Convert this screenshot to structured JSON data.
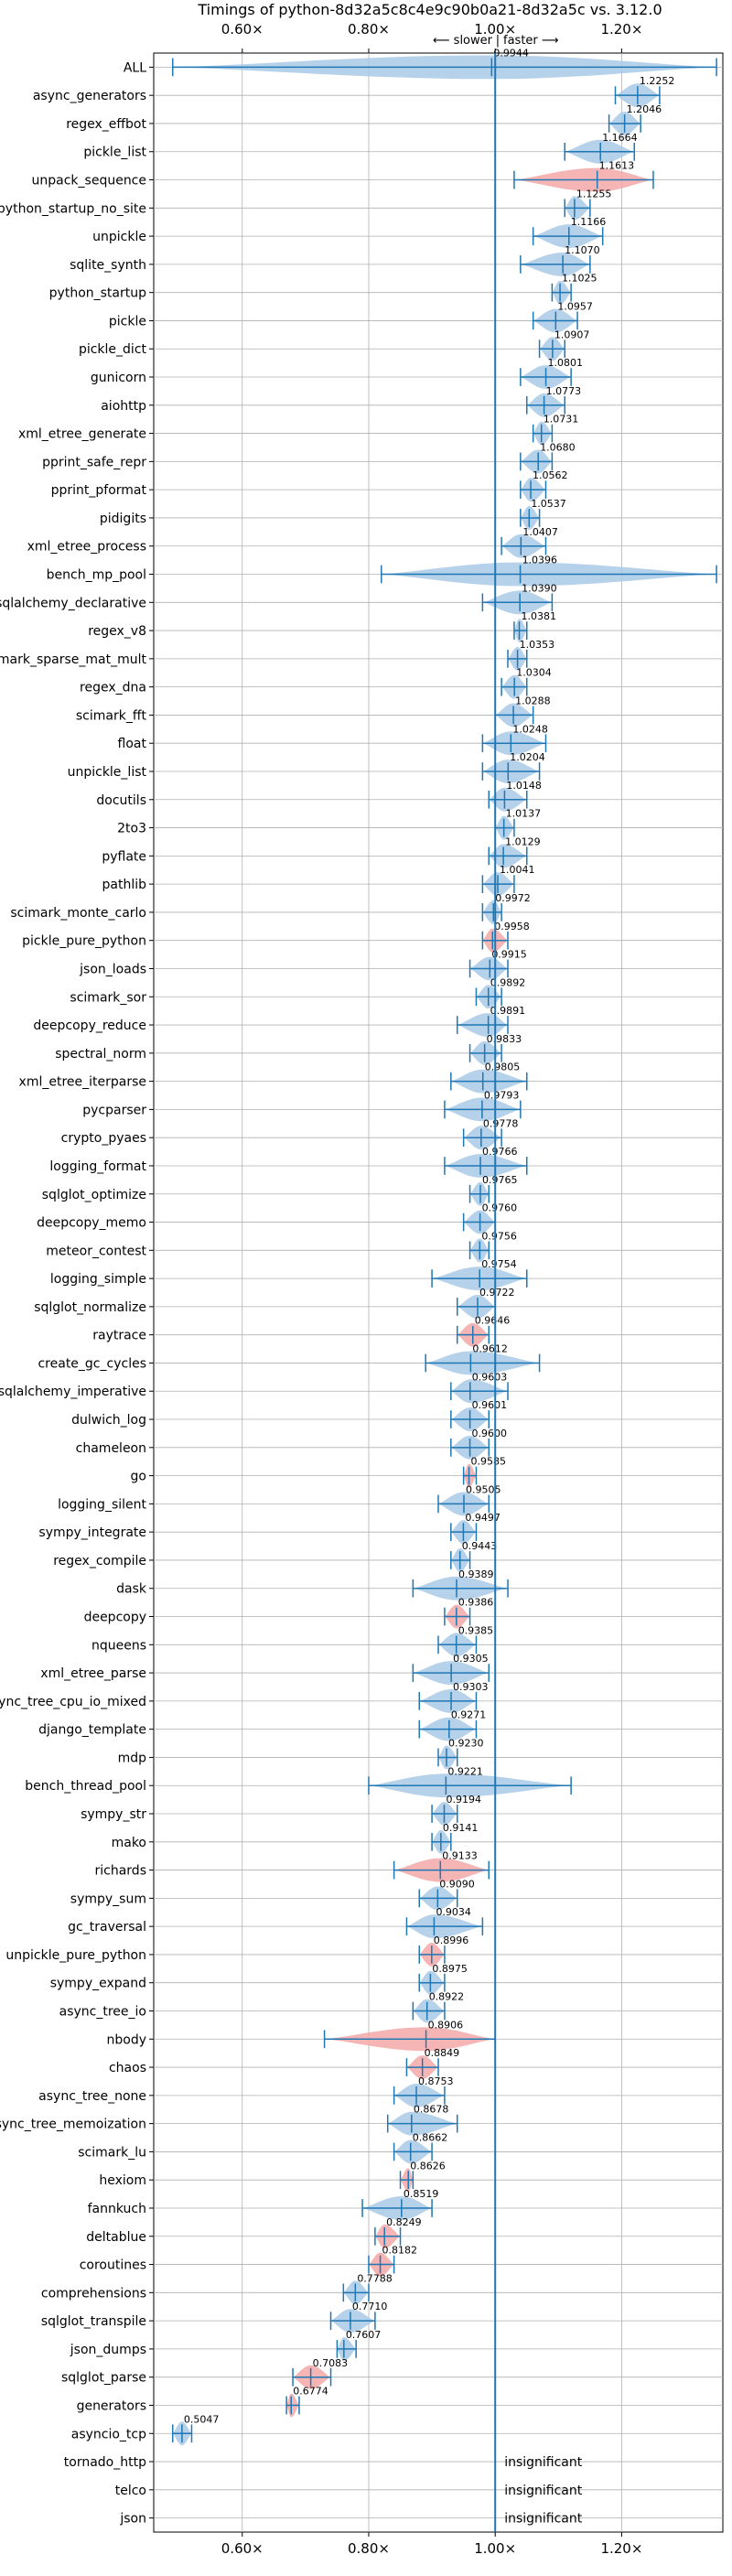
{
  "chart_data": {
    "type": "violin",
    "title": "Timings of python-8d32a5c8c4e9c90b0a21-8d32a5c vs. 3.12.0",
    "direction_note": {
      "slower": "⟵ slower",
      "faster": "faster ⟶",
      "sep": "|"
    },
    "xlim": [
      0.46,
      1.36
    ],
    "xticks": [
      0.6,
      0.8,
      1.0,
      1.2
    ],
    "xtick_labels": [
      "0.60×",
      "0.80×",
      "1.00×",
      "1.20×"
    ],
    "reference_line": 1.0,
    "grid": true,
    "colors": {
      "normal": "#a9c9e6",
      "slower": "#f4a8a8",
      "line": "#1f77b4"
    },
    "benchmarks": [
      {
        "name": "ALL",
        "value": 0.9944,
        "lo": 0.49,
        "hi": 1.35,
        "slower": false
      },
      {
        "name": "async_generators",
        "value": 1.2252,
        "lo": 1.19,
        "hi": 1.26,
        "slower": false
      },
      {
        "name": "regex_effbot",
        "value": 1.2046,
        "lo": 1.18,
        "hi": 1.23,
        "slower": false
      },
      {
        "name": "pickle_list",
        "value": 1.1664,
        "lo": 1.11,
        "hi": 1.22,
        "slower": false
      },
      {
        "name": "unpack_sequence",
        "value": 1.1613,
        "lo": 1.03,
        "hi": 1.25,
        "slower": true
      },
      {
        "name": "python_startup_no_site",
        "value": 1.1255,
        "lo": 1.11,
        "hi": 1.15,
        "slower": false
      },
      {
        "name": "unpickle",
        "value": 1.1166,
        "lo": 1.06,
        "hi": 1.17,
        "slower": false
      },
      {
        "name": "sqlite_synth",
        "value": 1.107,
        "lo": 1.04,
        "hi": 1.15,
        "slower": false
      },
      {
        "name": "python_startup",
        "value": 1.1025,
        "lo": 1.09,
        "hi": 1.12,
        "slower": false
      },
      {
        "name": "pickle",
        "value": 1.0957,
        "lo": 1.06,
        "hi": 1.13,
        "slower": false
      },
      {
        "name": "pickle_dict",
        "value": 1.0907,
        "lo": 1.07,
        "hi": 1.11,
        "slower": false
      },
      {
        "name": "gunicorn",
        "value": 1.0801,
        "lo": 1.04,
        "hi": 1.12,
        "slower": false
      },
      {
        "name": "aiohttp",
        "value": 1.0773,
        "lo": 1.05,
        "hi": 1.11,
        "slower": false
      },
      {
        "name": "xml_etree_generate",
        "value": 1.0731,
        "lo": 1.06,
        "hi": 1.09,
        "slower": false
      },
      {
        "name": "pprint_safe_repr",
        "value": 1.068,
        "lo": 1.04,
        "hi": 1.09,
        "slower": false
      },
      {
        "name": "pprint_pformat",
        "value": 1.0562,
        "lo": 1.04,
        "hi": 1.08,
        "slower": false
      },
      {
        "name": "pidigits",
        "value": 1.0537,
        "lo": 1.04,
        "hi": 1.07,
        "slower": false
      },
      {
        "name": "xml_etree_process",
        "value": 1.0407,
        "lo": 1.01,
        "hi": 1.08,
        "slower": false
      },
      {
        "name": "bench_mp_pool",
        "value": 1.0396,
        "lo": 0.82,
        "hi": 1.35,
        "slower": false
      },
      {
        "name": "sqlalchemy_declarative",
        "value": 1.039,
        "lo": 0.98,
        "hi": 1.09,
        "slower": false
      },
      {
        "name": "regex_v8",
        "value": 1.0381,
        "lo": 1.03,
        "hi": 1.05,
        "slower": false
      },
      {
        "name": "scimark_sparse_mat_mult",
        "value": 1.0353,
        "lo": 1.02,
        "hi": 1.05,
        "slower": false
      },
      {
        "name": "regex_dna",
        "value": 1.0304,
        "lo": 1.01,
        "hi": 1.05,
        "slower": false
      },
      {
        "name": "scimark_fft",
        "value": 1.0288,
        "lo": 1.0,
        "hi": 1.06,
        "slower": false
      },
      {
        "name": "float",
        "value": 1.0248,
        "lo": 0.98,
        "hi": 1.08,
        "slower": false
      },
      {
        "name": "unpickle_list",
        "value": 1.0204,
        "lo": 0.98,
        "hi": 1.07,
        "slower": false
      },
      {
        "name": "docutils",
        "value": 1.0148,
        "lo": 0.99,
        "hi": 1.05,
        "slower": false
      },
      {
        "name": "2to3",
        "value": 1.0137,
        "lo": 1.0,
        "hi": 1.03,
        "slower": false
      },
      {
        "name": "pyflate",
        "value": 1.0129,
        "lo": 0.99,
        "hi": 1.05,
        "slower": false
      },
      {
        "name": "pathlib",
        "value": 1.0041,
        "lo": 0.98,
        "hi": 1.03,
        "slower": false
      },
      {
        "name": "scimark_monte_carlo",
        "value": 0.9972,
        "lo": 0.98,
        "hi": 1.01,
        "slower": false
      },
      {
        "name": "pickle_pure_python",
        "value": 0.9958,
        "lo": 0.98,
        "hi": 1.02,
        "slower": true
      },
      {
        "name": "json_loads",
        "value": 0.9915,
        "lo": 0.96,
        "hi": 1.02,
        "slower": false
      },
      {
        "name": "scimark_sor",
        "value": 0.9892,
        "lo": 0.97,
        "hi": 1.01,
        "slower": false
      },
      {
        "name": "deepcopy_reduce",
        "value": 0.9891,
        "lo": 0.94,
        "hi": 1.02,
        "slower": false
      },
      {
        "name": "spectral_norm",
        "value": 0.9833,
        "lo": 0.96,
        "hi": 1.01,
        "slower": false
      },
      {
        "name": "xml_etree_iterparse",
        "value": 0.9805,
        "lo": 0.93,
        "hi": 1.05,
        "slower": false
      },
      {
        "name": "pycparser",
        "value": 0.9793,
        "lo": 0.92,
        "hi": 1.04,
        "slower": false
      },
      {
        "name": "crypto_pyaes",
        "value": 0.9778,
        "lo": 0.95,
        "hi": 1.01,
        "slower": false
      },
      {
        "name": "logging_format",
        "value": 0.9766,
        "lo": 0.92,
        "hi": 1.05,
        "slower": false
      },
      {
        "name": "sqlglot_optimize",
        "value": 0.9765,
        "lo": 0.96,
        "hi": 0.99,
        "slower": false
      },
      {
        "name": "deepcopy_memo",
        "value": 0.976,
        "lo": 0.95,
        "hi": 1.0,
        "slower": false
      },
      {
        "name": "meteor_contest",
        "value": 0.9756,
        "lo": 0.96,
        "hi": 0.99,
        "slower": false
      },
      {
        "name": "logging_simple",
        "value": 0.9754,
        "lo": 0.9,
        "hi": 1.05,
        "slower": false
      },
      {
        "name": "sqlglot_normalize",
        "value": 0.9722,
        "lo": 0.94,
        "hi": 1.0,
        "slower": false
      },
      {
        "name": "raytrace",
        "value": 0.9646,
        "lo": 0.94,
        "hi": 0.99,
        "slower": true
      },
      {
        "name": "create_gc_cycles",
        "value": 0.9612,
        "lo": 0.89,
        "hi": 1.07,
        "slower": false
      },
      {
        "name": "sqlalchemy_imperative",
        "value": 0.9603,
        "lo": 0.93,
        "hi": 1.02,
        "slower": false
      },
      {
        "name": "dulwich_log",
        "value": 0.9601,
        "lo": 0.93,
        "hi": 0.99,
        "slower": false
      },
      {
        "name": "chameleon",
        "value": 0.96,
        "lo": 0.93,
        "hi": 0.99,
        "slower": false
      },
      {
        "name": "go",
        "value": 0.9585,
        "lo": 0.95,
        "hi": 0.97,
        "slower": true
      },
      {
        "name": "logging_silent",
        "value": 0.9505,
        "lo": 0.91,
        "hi": 0.99,
        "slower": false
      },
      {
        "name": "sympy_integrate",
        "value": 0.9497,
        "lo": 0.93,
        "hi": 0.97,
        "slower": false
      },
      {
        "name": "regex_compile",
        "value": 0.9443,
        "lo": 0.93,
        "hi": 0.96,
        "slower": false
      },
      {
        "name": "dask",
        "value": 0.9389,
        "lo": 0.87,
        "hi": 1.02,
        "slower": false
      },
      {
        "name": "deepcopy",
        "value": 0.9386,
        "lo": 0.92,
        "hi": 0.96,
        "slower": true
      },
      {
        "name": "nqueens",
        "value": 0.9385,
        "lo": 0.91,
        "hi": 0.97,
        "slower": false
      },
      {
        "name": "xml_etree_parse",
        "value": 0.9305,
        "lo": 0.87,
        "hi": 0.99,
        "slower": false
      },
      {
        "name": "async_tree_cpu_io_mixed",
        "value": 0.9303,
        "lo": 0.88,
        "hi": 0.97,
        "slower": false
      },
      {
        "name": "django_template",
        "value": 0.9271,
        "lo": 0.88,
        "hi": 0.97,
        "slower": false
      },
      {
        "name": "mdp",
        "value": 0.923,
        "lo": 0.91,
        "hi": 0.94,
        "slower": false
      },
      {
        "name": "bench_thread_pool",
        "value": 0.9221,
        "lo": 0.8,
        "hi": 1.12,
        "slower": false
      },
      {
        "name": "sympy_str",
        "value": 0.9194,
        "lo": 0.9,
        "hi": 0.94,
        "slower": false
      },
      {
        "name": "mako",
        "value": 0.9141,
        "lo": 0.9,
        "hi": 0.93,
        "slower": false
      },
      {
        "name": "richards",
        "value": 0.9133,
        "lo": 0.84,
        "hi": 0.99,
        "slower": true
      },
      {
        "name": "sympy_sum",
        "value": 0.909,
        "lo": 0.88,
        "hi": 0.94,
        "slower": false
      },
      {
        "name": "gc_traversal",
        "value": 0.9034,
        "lo": 0.86,
        "hi": 0.98,
        "slower": false
      },
      {
        "name": "unpickle_pure_python",
        "value": 0.8996,
        "lo": 0.88,
        "hi": 0.92,
        "slower": true
      },
      {
        "name": "sympy_expand",
        "value": 0.8975,
        "lo": 0.88,
        "hi": 0.92,
        "slower": false
      },
      {
        "name": "async_tree_io",
        "value": 0.8922,
        "lo": 0.87,
        "hi": 0.92,
        "slower": false
      },
      {
        "name": "nbody",
        "value": 0.8906,
        "lo": 0.73,
        "hi": 1.0,
        "slower": true
      },
      {
        "name": "chaos",
        "value": 0.8849,
        "lo": 0.86,
        "hi": 0.91,
        "slower": true
      },
      {
        "name": "async_tree_none",
        "value": 0.8753,
        "lo": 0.84,
        "hi": 0.92,
        "slower": false
      },
      {
        "name": "async_tree_memoization",
        "value": 0.8678,
        "lo": 0.83,
        "hi": 0.94,
        "slower": false
      },
      {
        "name": "scimark_lu",
        "value": 0.8662,
        "lo": 0.84,
        "hi": 0.9,
        "slower": false
      },
      {
        "name": "hexiom",
        "value": 0.8626,
        "lo": 0.85,
        "hi": 0.87,
        "slower": true
      },
      {
        "name": "fannkuch",
        "value": 0.8519,
        "lo": 0.79,
        "hi": 0.9,
        "slower": false
      },
      {
        "name": "deltablue",
        "value": 0.8249,
        "lo": 0.81,
        "hi": 0.85,
        "slower": true
      },
      {
        "name": "coroutines",
        "value": 0.8182,
        "lo": 0.8,
        "hi": 0.84,
        "slower": true
      },
      {
        "name": "comprehensions",
        "value": 0.7788,
        "lo": 0.76,
        "hi": 0.8,
        "slower": false
      },
      {
        "name": "sqlglot_transpile",
        "value": 0.771,
        "lo": 0.74,
        "hi": 0.81,
        "slower": false
      },
      {
        "name": "json_dumps",
        "value": 0.7607,
        "lo": 0.75,
        "hi": 0.78,
        "slower": false
      },
      {
        "name": "sqlglot_parse",
        "value": 0.7083,
        "lo": 0.68,
        "hi": 0.74,
        "slower": true
      },
      {
        "name": "generators",
        "value": 0.6774,
        "lo": 0.67,
        "hi": 0.69,
        "slower": true
      },
      {
        "name": "asyncio_tcp",
        "value": 0.5047,
        "lo": 0.49,
        "hi": 0.52,
        "slower": false
      },
      {
        "name": "tornado_http",
        "value": null,
        "insignificant": true
      },
      {
        "name": "telco",
        "value": null,
        "insignificant": true
      },
      {
        "name": "json",
        "value": null,
        "insignificant": true
      }
    ],
    "insignificant_label": "insignificant"
  }
}
